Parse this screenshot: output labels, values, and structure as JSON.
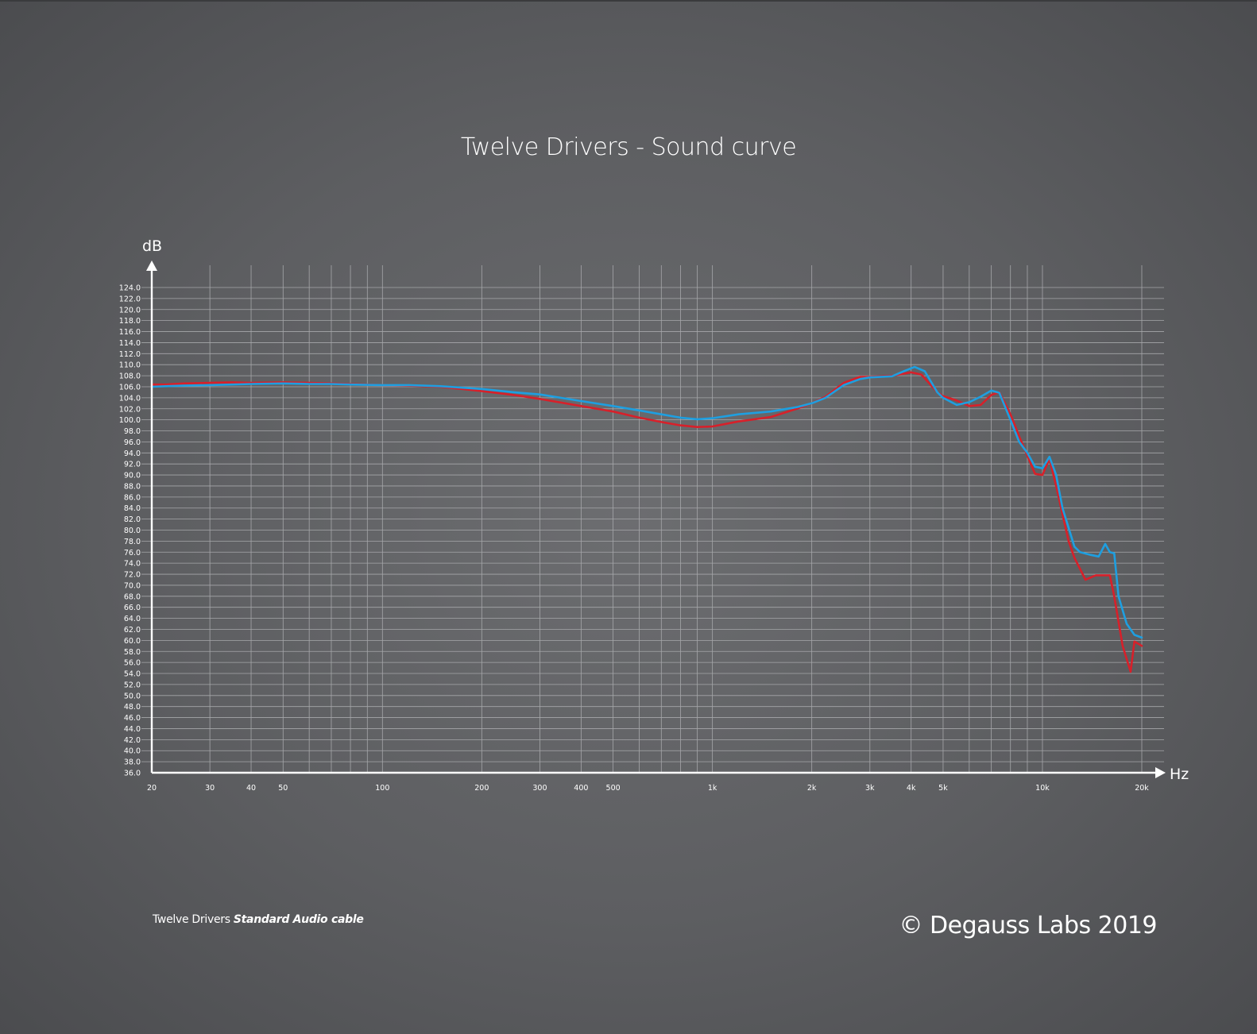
{
  "title": "Twelve Drivers - Sound curve",
  "caption": {
    "prefix": "Twelve Drivers ",
    "emphasis": "Standard Audio cable"
  },
  "copyright": "© Degauss Labs 2019",
  "colors": {
    "red": "#d7202a",
    "blue": "#1e9fe0",
    "grid": "#a6a7aa",
    "axis": "#ffffff"
  },
  "chart_data": {
    "type": "line",
    "title": "Twelve Drivers - Sound curve",
    "xlabel": "Hz",
    "ylabel": "dB",
    "xscale": "log",
    "xlim": [
      20,
      20000
    ],
    "ylim": [
      36,
      124
    ],
    "y_tick_step": 2,
    "x_tick_labels": [
      {
        "value": 20,
        "label": "20"
      },
      {
        "value": 30,
        "label": "30"
      },
      {
        "value": 40,
        "label": "40"
      },
      {
        "value": 50,
        "label": "50"
      },
      {
        "value": 100,
        "label": "100"
      },
      {
        "value": 200,
        "label": "200"
      },
      {
        "value": 300,
        "label": "300"
      },
      {
        "value": 400,
        "label": "400"
      },
      {
        "value": 500,
        "label": "500"
      },
      {
        "value": 1000,
        "label": "1k"
      },
      {
        "value": 2000,
        "label": "2k"
      },
      {
        "value": 3000,
        "label": "3k"
      },
      {
        "value": 4000,
        "label": "4k"
      },
      {
        "value": 5000,
        "label": "5k"
      },
      {
        "value": 10000,
        "label": "10k"
      },
      {
        "value": 20000,
        "label": "20k"
      }
    ],
    "grid": true,
    "series": [
      {
        "color": "#d7202a",
        "points": [
          [
            20,
            106.4
          ],
          [
            22,
            106.4
          ],
          [
            25,
            106.6
          ],
          [
            30,
            106.7
          ],
          [
            35,
            106.8
          ],
          [
            40,
            106.7
          ],
          [
            50,
            106.8
          ],
          [
            60,
            106.7
          ],
          [
            70,
            106.6
          ],
          [
            80,
            106.5
          ],
          [
            100,
            106.3
          ],
          [
            120,
            106.2
          ],
          [
            150,
            106.0
          ],
          [
            200,
            105.2
          ],
          [
            250,
            104.5
          ],
          [
            300,
            103.8
          ],
          [
            400,
            102.5
          ],
          [
            500,
            101.5
          ],
          [
            600,
            100.4
          ],
          [
            700,
            99.6
          ],
          [
            800,
            99.0
          ],
          [
            900,
            98.7
          ],
          [
            1000,
            98.8
          ],
          [
            1200,
            99.7
          ],
          [
            1500,
            100.5
          ],
          [
            1800,
            102.0
          ],
          [
            2000,
            103.0
          ],
          [
            2200,
            104.2
          ],
          [
            2500,
            106.7
          ],
          [
            2800,
            107.8
          ],
          [
            3000,
            107.8
          ],
          [
            3500,
            108.0
          ],
          [
            4000,
            108.6
          ],
          [
            4300,
            108.2
          ],
          [
            4800,
            105.0
          ],
          [
            5000,
            104.3
          ],
          [
            5500,
            103.5
          ],
          [
            6000,
            102.5
          ],
          [
            6500,
            102.7
          ],
          [
            7000,
            104.5
          ],
          [
            7400,
            105.0
          ],
          [
            8000,
            101.0
          ],
          [
            8500,
            97.0
          ],
          [
            9000,
            93.5
          ],
          [
            9500,
            90.2
          ],
          [
            10000,
            90.0
          ],
          [
            10500,
            93.0
          ],
          [
            11000,
            88.0
          ],
          [
            12000,
            78.0
          ],
          [
            12500,
            75.0
          ],
          [
            13500,
            71.0
          ],
          [
            14500,
            71.8
          ],
          [
            16000,
            71.8
          ],
          [
            16500,
            68.0
          ],
          [
            17500,
            59.0
          ],
          [
            18500,
            54.3
          ],
          [
            19000,
            59.8
          ],
          [
            20000,
            59.0
          ]
        ]
      },
      {
        "color": "#1e9fe0",
        "points": [
          [
            20,
            106.0
          ],
          [
            22,
            106.1
          ],
          [
            25,
            106.2
          ],
          [
            30,
            106.3
          ],
          [
            35,
            106.4
          ],
          [
            40,
            106.5
          ],
          [
            50,
            106.6
          ],
          [
            60,
            106.5
          ],
          [
            70,
            106.5
          ],
          [
            80,
            106.4
          ],
          [
            100,
            106.3
          ],
          [
            120,
            106.3
          ],
          [
            150,
            106.1
          ],
          [
            200,
            105.6
          ],
          [
            250,
            105.0
          ],
          [
            300,
            104.6
          ],
          [
            400,
            103.4
          ],
          [
            500,
            102.5
          ],
          [
            600,
            101.7
          ],
          [
            700,
            101.0
          ],
          [
            800,
            100.4
          ],
          [
            900,
            100.1
          ],
          [
            1000,
            100.3
          ],
          [
            1200,
            101.0
          ],
          [
            1500,
            101.5
          ],
          [
            1800,
            102.3
          ],
          [
            2000,
            103.0
          ],
          [
            2200,
            104.0
          ],
          [
            2500,
            106.3
          ],
          [
            2800,
            107.4
          ],
          [
            3000,
            107.7
          ],
          [
            3500,
            107.9
          ],
          [
            3800,
            108.8
          ],
          [
            4100,
            109.6
          ],
          [
            4400,
            108.8
          ],
          [
            4800,
            105.0
          ],
          [
            5000,
            104.0
          ],
          [
            5500,
            102.7
          ],
          [
            6000,
            103.2
          ],
          [
            6500,
            104.2
          ],
          [
            7000,
            105.3
          ],
          [
            7400,
            104.9
          ],
          [
            8000,
            100.0
          ],
          [
            8500,
            96.0
          ],
          [
            9000,
            94.0
          ],
          [
            9500,
            91.5
          ],
          [
            10000,
            91.2
          ],
          [
            10500,
            93.3
          ],
          [
            11000,
            90.0
          ],
          [
            11500,
            84.0
          ],
          [
            12500,
            77.0
          ],
          [
            13000,
            76.0
          ],
          [
            14000,
            75.5
          ],
          [
            14800,
            75.2
          ],
          [
            15500,
            77.5
          ],
          [
            16000,
            76.0
          ],
          [
            16500,
            75.8
          ],
          [
            17000,
            68.0
          ],
          [
            18000,
            63.0
          ],
          [
            19000,
            61.0
          ],
          [
            20000,
            60.5
          ]
        ]
      }
    ]
  }
}
